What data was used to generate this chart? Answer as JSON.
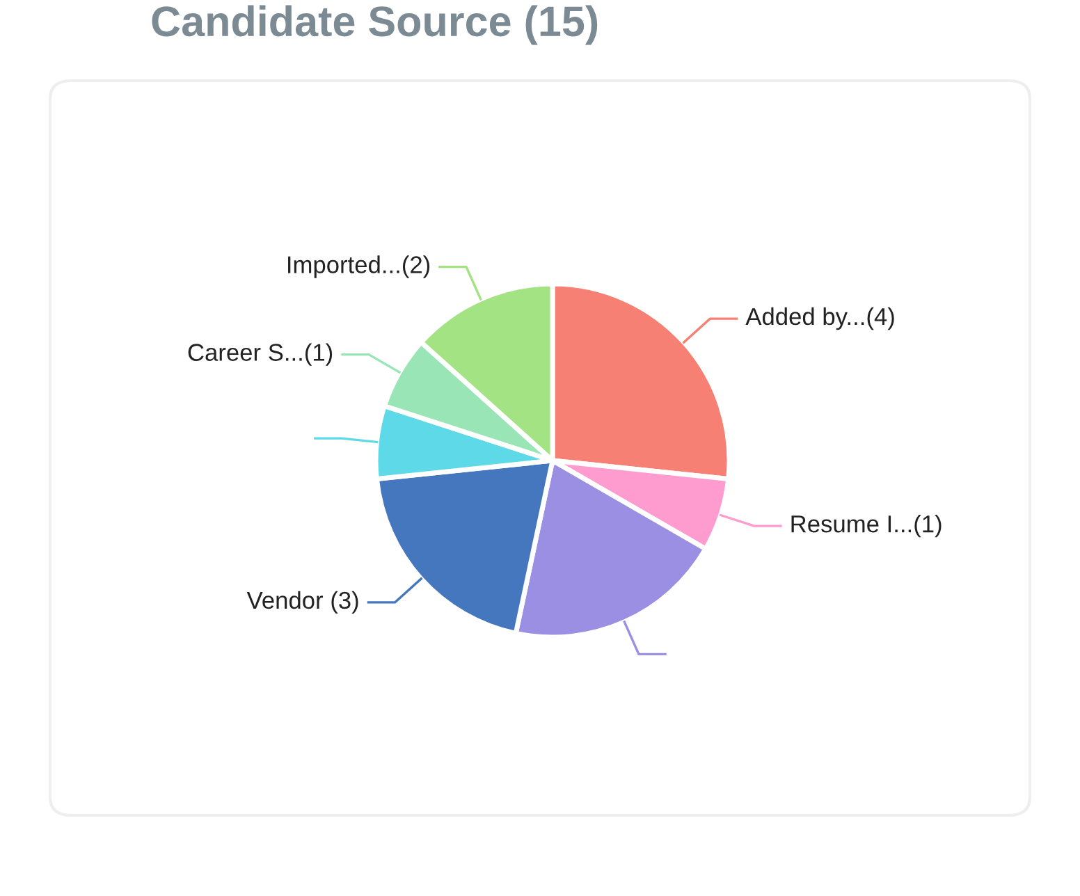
{
  "chart_data": {
    "type": "pie",
    "title": "Candidate Source (15)",
    "categories": [
      "Added by...(4)",
      "Resume I...(1)",
      null,
      "Vendor (3)",
      null,
      "Career S...(1)",
      "Imported...(2)"
    ],
    "values": [
      4,
      1,
      3,
      3,
      1,
      1,
      2
    ],
    "colors": [
      "#f58073",
      "#ff9ccf",
      "#9b8fe3",
      "#4577be",
      "#5ed9e8",
      "#9ae5b5",
      "#a3e383"
    ],
    "legend": false
  }
}
